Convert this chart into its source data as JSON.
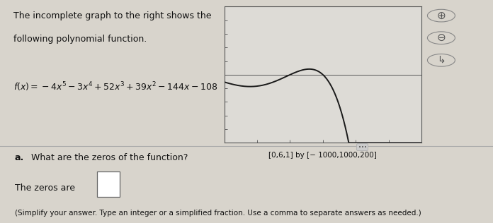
{
  "title_line1": "The incomplete graph to the right shows the",
  "title_line2": "following polynomial function.",
  "formula_plain": "f(x) = −4x⁵ − 3x⁴ + 52x³ + 39x² − 144x − 108",
  "window_label": "[0,6,1] by [− 1000,1000,200]",
  "question_bold": "a.",
  "question_rest": " What are the zeros of the function?",
  "answer_prompt": "The zeros are",
  "answer_note": "(Simplify your answer. Type an integer or a simplified fraction. Use a comma to separate answers as needed.)",
  "x_min": 0,
  "x_max": 6,
  "x_step": 1,
  "y_min": -1000,
  "y_max": 1000,
  "y_step": 200,
  "bg_color": "#d8d4cc",
  "plot_bg_color": "#dddbd6",
  "curve_color": "#1a1a1a",
  "text_color": "#111111",
  "divider_color": "#aaaaaa",
  "plot_border_color": "#555555",
  "icon_color": "#555555"
}
